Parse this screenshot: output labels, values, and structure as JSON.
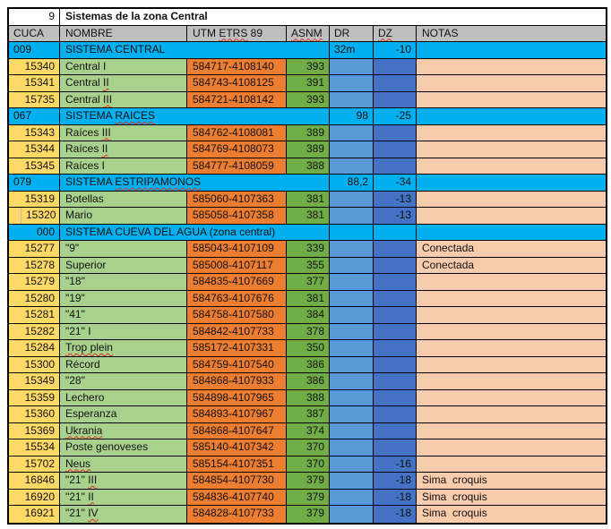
{
  "title": {
    "index_label": "9",
    "text": "Sistemas de la zona Central"
  },
  "header": {
    "cuca": "CUCA",
    "nombre": "NOMBRE",
    "utm": {
      "pre": "UTM ",
      "sq": "ETRS",
      "post": " 89"
    },
    "asnm": {
      "sq": "ASNM"
    },
    "dr": "DR",
    "dz": {
      "sq": "DZ"
    },
    "notas": "NOTAS"
  },
  "palette": {
    "section_cyan": "#00B0F0",
    "cuca_yellow": "#FFD966",
    "nombre_green": "#A9D18E",
    "utm_orange": "#ED7D31",
    "asnm_green": "#70AD47",
    "dr_blue": "#5B9BD5",
    "dz_blue": "#4472C4",
    "notas_peach": "#F8CBAD",
    "header_gray": "#BFBFBF",
    "grid_border": "#000000",
    "squiggle_red": "#e0301e"
  },
  "rows": [
    {
      "t": "s",
      "cuca": "009",
      "name": "SISTEMA CENTRAL",
      "dr": "32m",
      "dr_align": "left",
      "dz": "-10"
    },
    {
      "t": "d",
      "cuca": "15340",
      "name": "Central I",
      "utm": "584717-4108140",
      "asnm": "393"
    },
    {
      "t": "d",
      "cuca": "15341",
      "name": "Central II",
      "sq": "II",
      "utm": "584743-4108125",
      "asnm": "391"
    },
    {
      "t": "d",
      "cuca": "15735",
      "name": "Central III",
      "sq": "III",
      "utm": "584721-4108142",
      "asnm": "393"
    },
    {
      "t": "s",
      "cuca": "067",
      "name": "SISTEMA RAICES",
      "sq": "RAICES",
      "dr": "98",
      "dr_align": "right",
      "dz": "-25"
    },
    {
      "t": "d",
      "cuca": "15343",
      "name": "Raíces III",
      "sq": "III",
      "utm": "584762-4108081",
      "asnm": "389"
    },
    {
      "t": "d",
      "cuca": "15344",
      "name": "Raíces II",
      "sq": "II",
      "utm": "584769-4108073",
      "asnm": "389"
    },
    {
      "t": "d",
      "cuca": "15345",
      "name": "Raíces I",
      "utm": "584777-4108059",
      "asnm": "388"
    },
    {
      "t": "s",
      "cuca": "079",
      "name": "SISTEMA ESTRIPAMONOS",
      "sq": "ESTRIPAMONOS",
      "dr": "88,2",
      "dr_align": "right",
      "dz": "-34"
    },
    {
      "t": "d",
      "cuca": "15319",
      "name": "Botellas",
      "utm": "585060-4107363",
      "asnm": "381",
      "dz": "-13"
    },
    {
      "t": "d",
      "cuca": "15320",
      "split": true,
      "name": "Mario",
      "utm": "585058-4107358",
      "asnm": "381",
      "dz": "-13"
    },
    {
      "t": "s",
      "cuca": "000",
      "align": "right",
      "name": "SISTEMA CUEVA DEL AGUA (zona central)",
      "dr": "",
      "dz": ""
    },
    {
      "t": "d",
      "cuca": "15277",
      "name": "\"9\"",
      "utm": "585043-4107109",
      "asnm": "339",
      "notas": "Conectada"
    },
    {
      "t": "d",
      "cuca": "15278",
      "name": "Superior",
      "utm": "585008-4107117",
      "asnm": "355",
      "notas": "Conectada"
    },
    {
      "t": "d",
      "cuca": "15279",
      "name": "\"18\"",
      "utm": "584835-4107669",
      "asnm": "377"
    },
    {
      "t": "d",
      "cuca": "15280",
      "name": "\"19\"",
      "utm": "584763-4107676",
      "asnm": "381"
    },
    {
      "t": "d",
      "cuca": "15281",
      "name": "\"41\"",
      "utm": "584758-4107580",
      "asnm": "384"
    },
    {
      "t": "d",
      "cuca": "15282",
      "name": "\"21\" I",
      "utm": "584842-4107733",
      "asnm": "378"
    },
    {
      "t": "d",
      "cuca": "15284",
      "name": "Trop plein",
      "sq": "Trop plein",
      "utm": "585172-4107331",
      "asnm": "350"
    },
    {
      "t": "d",
      "cuca": "15300",
      "name": "Récord",
      "utm": "584759-4107540",
      "asnm": "386"
    },
    {
      "t": "d",
      "cuca": "15349",
      "name": "\"28\"",
      "utm": "584868-4107933",
      "asnm": "386"
    },
    {
      "t": "d",
      "cuca": "15359",
      "name": "Lechero",
      "utm": "584898-4107965",
      "asnm": "388"
    },
    {
      "t": "d",
      "cuca": "15360",
      "name": "Esperanza",
      "utm": "584893-4107967",
      "asnm": "387"
    },
    {
      "t": "d",
      "cuca": "15369",
      "name": "Ukrania",
      "sq": "Ukrania",
      "utm": "584868-4107647",
      "asnm": "374"
    },
    {
      "t": "d",
      "cuca": "15534",
      "name": "Poste genoveses",
      "utm": "585140-4107342",
      "asnm": "370"
    },
    {
      "t": "d",
      "cuca": "15702",
      "name": "Neus",
      "sq": "Neus",
      "utm": "585154-4107351",
      "asnm": "370",
      "dz": "-16"
    },
    {
      "t": "d",
      "cuca": "16846",
      "name": "\"21\" III",
      "sq": "III",
      "utm": "584854-4107730",
      "asnm": "379",
      "dz": "-18",
      "notas": "Sima  croquis"
    },
    {
      "t": "d",
      "cuca": "16920",
      "name": "\"21\" II",
      "sq": "II",
      "utm": "584836-4107740",
      "asnm": "379",
      "dz": "-18",
      "notas": "Sima  croquis"
    },
    {
      "t": "d",
      "cuca": "16921",
      "name": "\"21\" IV",
      "sq": "IV",
      "utm": "584828-4107733",
      "asnm": "379",
      "dz": "-18",
      "notas": "Sima  croquis"
    }
  ]
}
